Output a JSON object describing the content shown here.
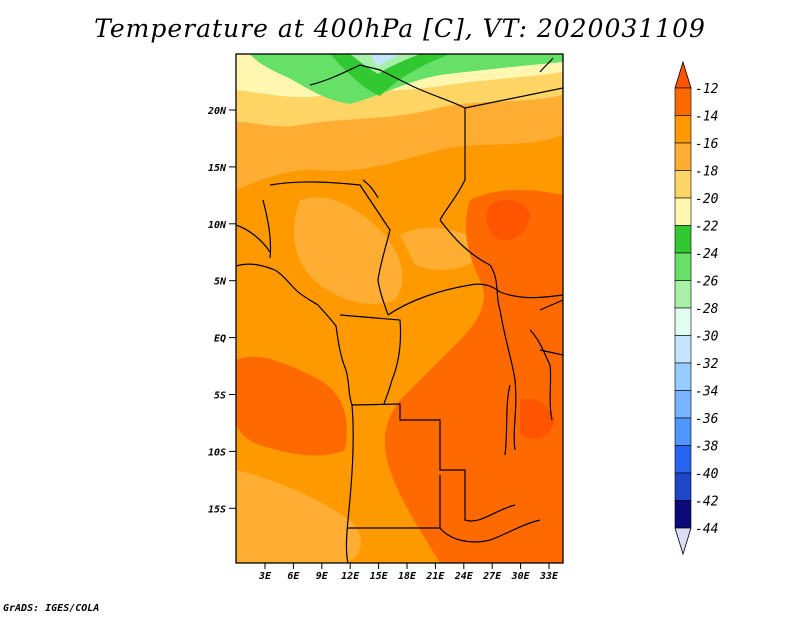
{
  "title": "Temperature at 400hPa [C], VT: 2020031109",
  "credit": "GrADS: IGES/COLA",
  "map": {
    "lat_labels": [
      "20N",
      "15N",
      "10N",
      "5N",
      "EQ",
      "5S",
      "10S",
      "15S"
    ],
    "lon_labels": [
      "3E",
      "6E",
      "9E",
      "12E",
      "15E",
      "18E",
      "21E",
      "24E",
      "27E",
      "30E",
      "33E"
    ]
  },
  "colorbar": {
    "labels": [
      "-12",
      "-14",
      "-16",
      "-18",
      "-20",
      "-22",
      "-24",
      "-26",
      "-28",
      "-30",
      "-32",
      "-34",
      "-36",
      "-38",
      "-40",
      "-42",
      "-44"
    ],
    "colors": [
      "#ff5500",
      "#ff6a00",
      "#ff9900",
      "#ffad33",
      "#ffd566",
      "#fff7b0",
      "#32c832",
      "#66e066",
      "#a8f0a8",
      "#e0fff0",
      "#c4e4ff",
      "#96ccff",
      "#78b4ff",
      "#5096ff",
      "#2864f0",
      "#1e46c8",
      "#0a0a78",
      "#dcdcf5"
    ]
  },
  "colors": {
    "frame": "#000000",
    "border_line": "#000000"
  }
}
